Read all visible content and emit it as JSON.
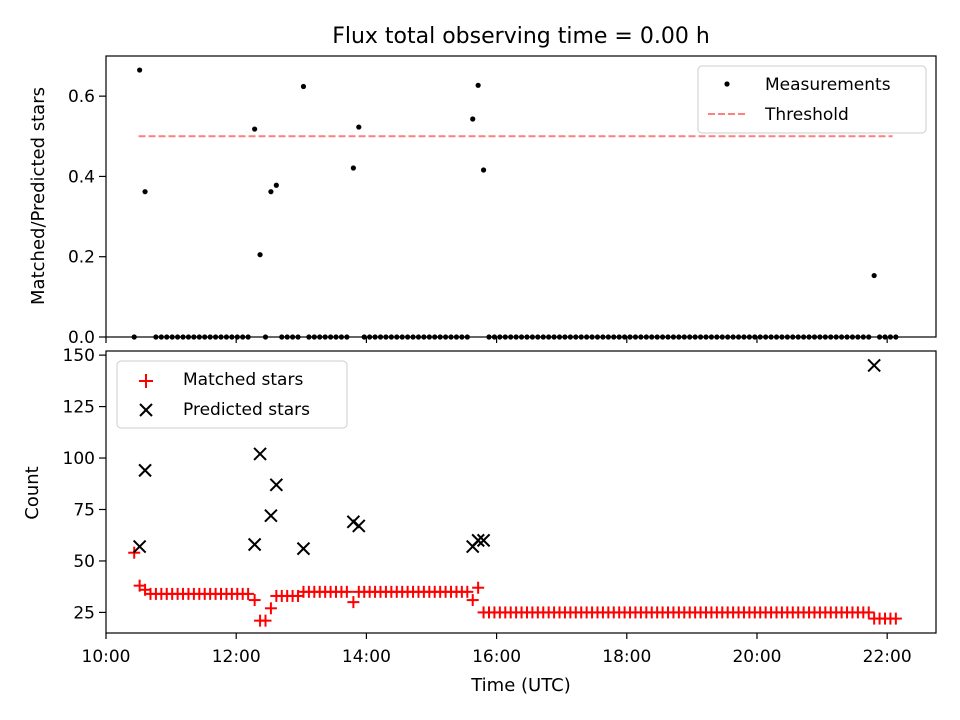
{
  "title": "Flux total observing time = 0.00 h",
  "chart_data": [
    {
      "type": "scatter",
      "ylabel": "Matched/Predicted stars",
      "xlim": [
        "10:00",
        "22:45"
      ],
      "ylim": [
        0,
        0.7
      ],
      "yticks": [
        "0.0",
        "0.2",
        "0.4",
        "0.6"
      ],
      "grid": false,
      "legend_position": "top-right",
      "legend": [
        "Measurements",
        "Threshold"
      ],
      "threshold": {
        "name": "Threshold",
        "value": 0.5,
        "x_range": [
          "10:30",
          "22:05"
        ],
        "color": "#ff7f7f"
      },
      "series": [
        {
          "name": "Measurements",
          "color": "#000000",
          "points": [
            [
              "10:26",
              0
            ],
            [
              "10:31",
              0.665
            ],
            [
              "10:36",
              0.362
            ],
            [
              "12:17",
              0.518
            ],
            [
              "12:22",
              0.205
            ],
            [
              "12:32",
              0.362
            ],
            [
              "12:37",
              0.378
            ],
            [
              "13:02",
              0.624
            ],
            [
              "13:48",
              0.421
            ],
            [
              "13:53",
              0.523
            ],
            [
              "15:38",
              0.543
            ],
            [
              "15:43",
              0.627
            ],
            [
              "15:48",
              0.416
            ],
            [
              "21:48",
              0.153
            ]
          ],
          "zero_ranges": [
            [
              "10:46",
              "12:12"
            ],
            [
              "12:27",
              "12:27"
            ],
            [
              "12:42",
              "12:57"
            ],
            [
              "13:07",
              "13:43"
            ],
            [
              "13:58",
              "15:33"
            ],
            [
              "15:53",
              "21:43"
            ],
            [
              "21:53",
              "22:08"
            ]
          ]
        }
      ]
    },
    {
      "type": "scatter",
      "xlabel": "Time (UTC)",
      "ylabel": "Count",
      "xlim": [
        "10:00",
        "22:45"
      ],
      "ylim": [
        15,
        152
      ],
      "xticks": [
        "10:00",
        "12:00",
        "14:00",
        "16:00",
        "18:00",
        "20:00",
        "22:00"
      ],
      "yticks": [
        "25",
        "50",
        "75",
        "100",
        "125",
        "150"
      ],
      "grid": false,
      "legend_position": "top-left",
      "legend": [
        "Matched stars",
        "Predicted stars"
      ],
      "series": [
        {
          "name": "Matched stars",
          "color": "#ff0000",
          "marker": "plus",
          "points": [
            [
              "10:26",
              54
            ],
            [
              "10:31",
              38
            ],
            [
              "10:36",
              36
            ],
            [
              "12:17",
              31
            ],
            [
              "12:22",
              21
            ],
            [
              "12:27",
              21
            ],
            [
              "12:32",
              27
            ],
            [
              "12:37",
              33
            ],
            [
              "13:48",
              30
            ],
            [
              "15:38",
              31
            ],
            [
              "15:43",
              37
            ]
          ],
          "runs": [
            {
              "from": "10:41",
              "to": "12:12",
              "value": 34
            },
            {
              "from": "12:42",
              "to": "12:57",
              "value": 33
            },
            {
              "from": "13:02",
              "to": "13:43",
              "value": 35
            },
            {
              "from": "13:53",
              "to": "15:33",
              "value": 35
            },
            {
              "from": "15:48",
              "to": "21:43",
              "value": 25
            },
            {
              "from": "21:48",
              "to": "22:08",
              "value": 22
            }
          ]
        },
        {
          "name": "Predicted stars",
          "color": "#000000",
          "marker": "x",
          "points": [
            [
              "10:31",
              57
            ],
            [
              "10:36",
              94
            ],
            [
              "12:17",
              58
            ],
            [
              "12:22",
              102
            ],
            [
              "12:32",
              72
            ],
            [
              "12:37",
              87
            ],
            [
              "13:02",
              56
            ],
            [
              "13:48",
              69
            ],
            [
              "13:53",
              67
            ],
            [
              "15:38",
              57
            ],
            [
              "15:43",
              60
            ],
            [
              "15:48",
              60
            ],
            [
              "21:48",
              145
            ]
          ]
        }
      ]
    }
  ]
}
